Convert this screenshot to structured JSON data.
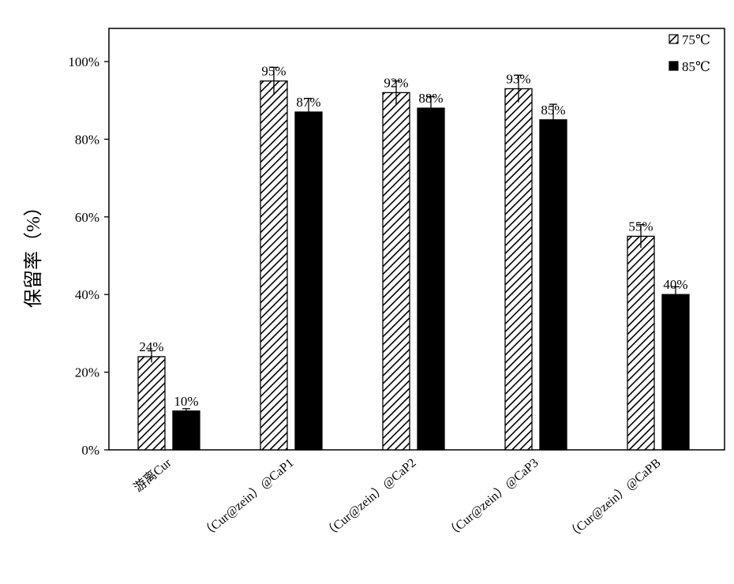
{
  "chart_data": {
    "type": "bar",
    "title": "",
    "xlabel": "",
    "ylabel": "保留率（%）",
    "ylim": [
      0,
      100
    ],
    "yticks": [
      "0%",
      "20%",
      "40%",
      "60%",
      "80%",
      "100%"
    ],
    "grid": false,
    "legend_position": "top-right",
    "categories": [
      "游离Cur",
      "（Cur@zein）@CaP1",
      "（Cur@zein）@CaP2",
      "（Cur@zein）@CaP3",
      "（Cur@zein）@CaPB"
    ],
    "series": [
      {
        "name": "75℃",
        "pattern": "hatched",
        "color": "#000000",
        "values": [
          24,
          95,
          92,
          93,
          55
        ],
        "errors": [
          1.5,
          3.5,
          3.0,
          3.5,
          3.0
        ],
        "labels": [
          "24%",
          "95%",
          "92%",
          "93%",
          "55%"
        ]
      },
      {
        "name": "85℃",
        "pattern": "solid",
        "color": "#000000",
        "values": [
          10,
          87,
          88,
          85,
          40
        ],
        "errors": [
          0.6,
          3.5,
          3.0,
          4.0,
          2.0
        ],
        "labels": [
          "10%",
          "87%",
          "88%",
          "85%",
          "40%"
        ]
      }
    ]
  }
}
